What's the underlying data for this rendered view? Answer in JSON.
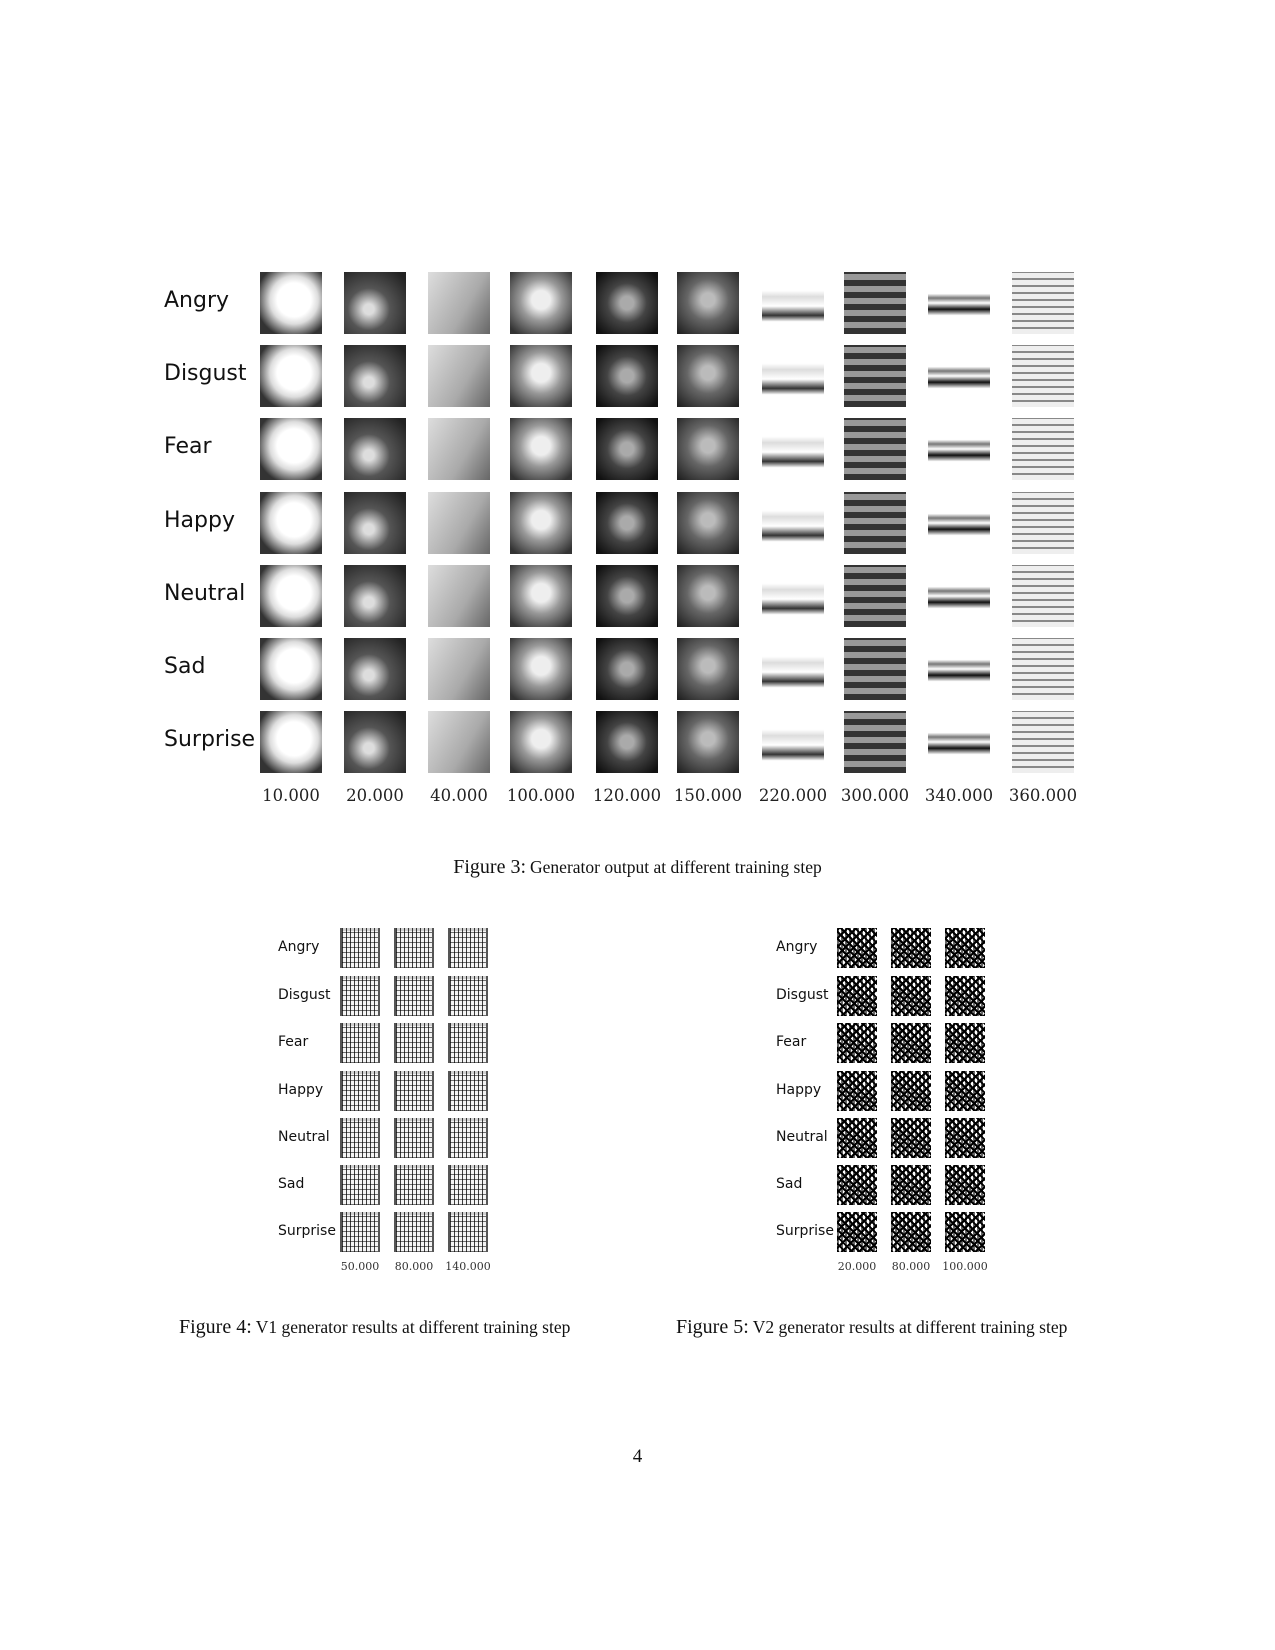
{
  "figure3": {
    "row_labels": [
      "Angry",
      "Disgust",
      "Fear",
      "Happy",
      "Neutral",
      "Sad",
      "Surprise"
    ],
    "steps": [
      "10.000",
      "20.000",
      "40.000",
      "100.000",
      "120.000",
      "150.000",
      "220.000",
      "300.000",
      "340.000",
      "360.000"
    ],
    "caption_number": "Figure 3:",
    "caption_text": "Generator output at different training step"
  },
  "figure4": {
    "row_labels": [
      "Angry",
      "Disgust",
      "Fear",
      "Happy",
      "Neutral",
      "Sad",
      "Surprise"
    ],
    "steps": [
      "50.000",
      "80.000",
      "140.000"
    ],
    "caption_number": "Figure 4:",
    "caption_text": "V1 generator results at different training step"
  },
  "figure5": {
    "row_labels": [
      "Angry",
      "Disgust",
      "Fear",
      "Happy",
      "Neutral",
      "Sad",
      "Surprise"
    ],
    "steps": [
      "20.000",
      "80.000",
      "100.000"
    ],
    "caption_number": "Figure 5:",
    "caption_text": "V2 generator results at different training step"
  },
  "page_number": "4"
}
